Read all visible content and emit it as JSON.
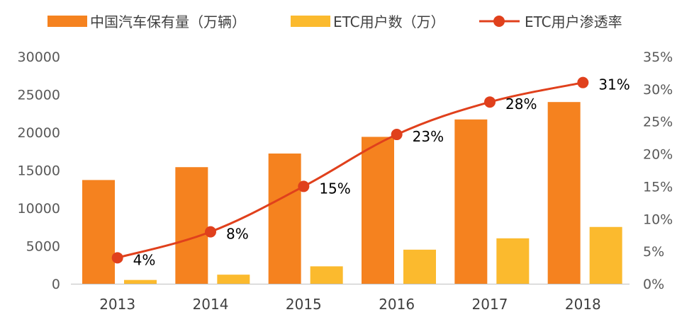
{
  "chart_data": {
    "type": "bar",
    "categories": [
      "2013",
      "2014",
      "2015",
      "2016",
      "2017",
      "2018"
    ],
    "series": [
      {
        "name": "中国汽车保有量（万辆）",
        "kind": "bar",
        "axis": "left",
        "values": [
          13700,
          15400,
          17200,
          19400,
          21700,
          24000
        ]
      },
      {
        "name": "ETC用户数（万）",
        "kind": "bar",
        "axis": "left",
        "values": [
          500,
          1200,
          2300,
          4500,
          6000,
          7500
        ]
      },
      {
        "name": "ETC用户渗透率",
        "kind": "line",
        "axis": "right",
        "values": [
          4,
          8,
          15,
          23,
          28,
          31
        ],
        "labels": [
          "4%",
          "8%",
          "15%",
          "23%",
          "28%",
          "31%"
        ]
      }
    ],
    "y_left": {
      "min": 0,
      "max": 30000,
      "ticks": [
        "0",
        "5000",
        "10000",
        "15000",
        "20000",
        "25000",
        "30000"
      ]
    },
    "y_right": {
      "min": 0,
      "max": 35,
      "ticks": [
        "0%",
        "5%",
        "10%",
        "15%",
        "20%",
        "25%",
        "30%",
        "35%"
      ]
    },
    "grid": false,
    "legend_position": "top",
    "colors": {
      "bar1": "#F5821F",
      "bar2": "#FBBA2E",
      "line": "#E0401C"
    }
  }
}
